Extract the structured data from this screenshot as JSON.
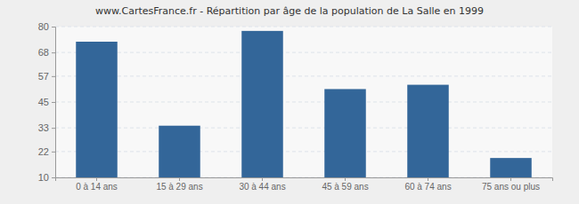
{
  "chart_data": {
    "type": "bar",
    "title": "www.CartesFrance.fr - Répartition par âge de la population de La Salle en 1999",
    "categories": [
      "0 à 14 ans",
      "15 à 29 ans",
      "30 à 44 ans",
      "45 à 59 ans",
      "60 à 74 ans",
      "75 ans ou plus"
    ],
    "values": [
      73,
      34,
      78,
      51,
      53,
      19
    ],
    "color": "#336699",
    "ylim": [
      10,
      80
    ],
    "yticks": [
      10,
      22,
      33,
      45,
      57,
      68,
      80
    ],
    "grid": true
  }
}
